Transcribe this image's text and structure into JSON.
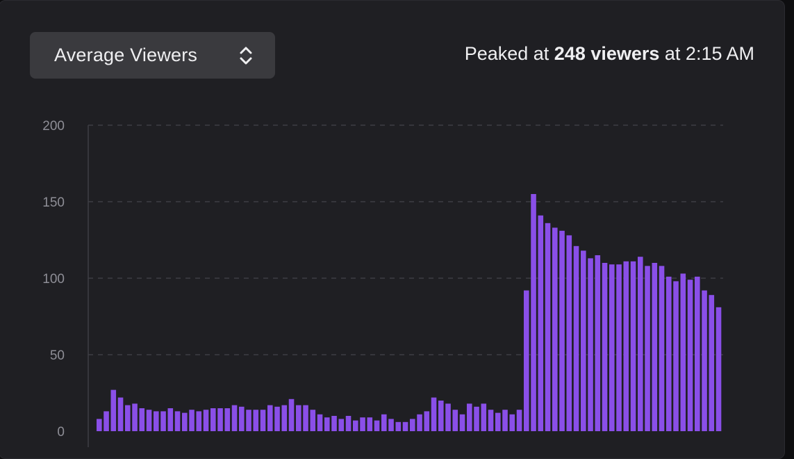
{
  "selector": {
    "label": "Average Viewers",
    "icon": "updown-chevron-icon"
  },
  "peak": {
    "prefix": "Peaked at ",
    "value": "248 viewers",
    "suffix": " at 2:15 AM"
  },
  "colors": {
    "panel": "#1f1f23",
    "bar": "#8a4fe8",
    "grid": "#3e3e44",
    "text": "#efeff1",
    "tick": "#8e8e96"
  },
  "chart_data": {
    "type": "bar",
    "title": "",
    "xlabel": "",
    "ylabel": "",
    "ylim": [
      0,
      200
    ],
    "yticks": [
      0,
      50,
      100,
      150,
      200
    ],
    "grid": true,
    "values": [
      8,
      13,
      27,
      22,
      17,
      18,
      15,
      14,
      13,
      13,
      15,
      13,
      12,
      14,
      13,
      14,
      15,
      15,
      15,
      17,
      16,
      14,
      14,
      14,
      17,
      16,
      17,
      21,
      17,
      17,
      14,
      11,
      9,
      10,
      8,
      10,
      7,
      9,
      9,
      7,
      11,
      8,
      6,
      6,
      8,
      11,
      13,
      22,
      20,
      18,
      14,
      11,
      18,
      16,
      18,
      14,
      12,
      14,
      11,
      14,
      92,
      155,
      141,
      136,
      133,
      131,
      128,
      121,
      118,
      113,
      115,
      110,
      109,
      109,
      111,
      111,
      114,
      108,
      110,
      108,
      101,
      98,
      103,
      99,
      101,
      92,
      89,
      81
    ]
  }
}
